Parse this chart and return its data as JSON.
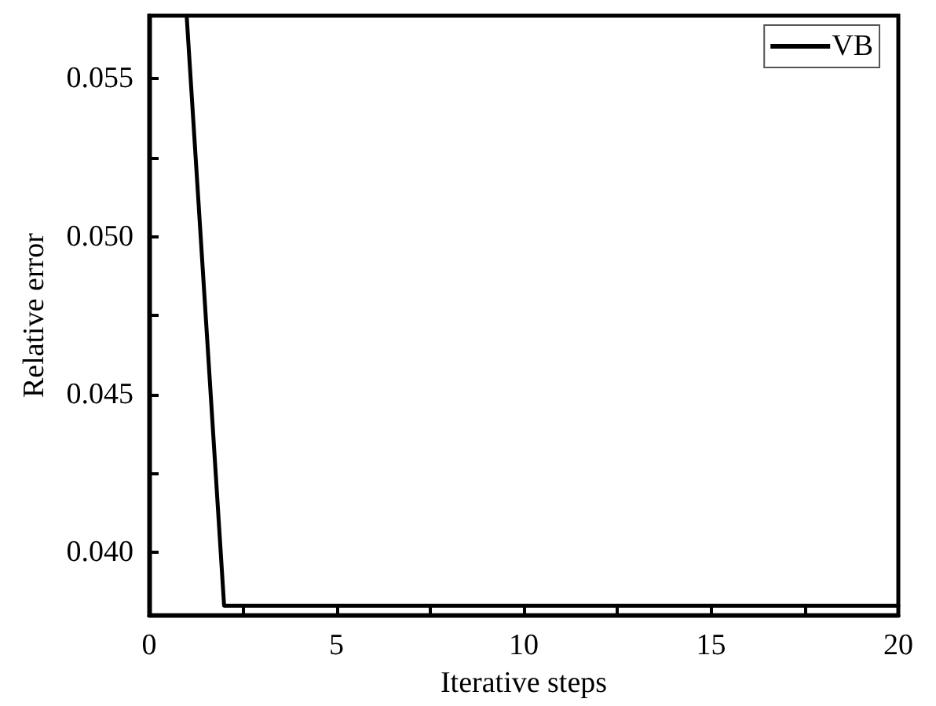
{
  "chart_data": {
    "type": "line",
    "xlabel": "Iterative steps",
    "ylabel": "Relative error",
    "x": [
      1,
      2,
      3,
      4,
      5,
      6,
      7,
      8,
      9,
      10,
      11,
      12,
      13,
      14,
      15,
      16,
      17,
      18,
      19,
      20
    ],
    "series": [
      {
        "name": "VB",
        "color": "#000000",
        "values": [
          0.057,
          0.0383,
          0.0383,
          0.0383,
          0.0383,
          0.0383,
          0.0383,
          0.0383,
          0.0383,
          0.0383,
          0.0383,
          0.0383,
          0.0383,
          0.0383,
          0.0383,
          0.0383,
          0.0383,
          0.0383,
          0.0383,
          0.0383
        ]
      }
    ],
    "xlim": [
      0,
      20
    ],
    "xticks": [
      0,
      {
        "value": 2.5,
        "label": null
      },
      5,
      {
        "value": 7.5,
        "label": null
      },
      10,
      {
        "value": 12.5,
        "label": null
      },
      15,
      {
        "value": 17.5,
        "label": null
      },
      20
    ],
    "ylim": [
      0.038,
      0.057
    ],
    "yticks": [
      {
        "value": 0.04,
        "label": "0.040"
      },
      {
        "value": 0.0425,
        "label": null
      },
      0.045,
      {
        "value": 0.0475,
        "label": null
      },
      {
        "value": 0.05,
        "label": "0.050"
      },
      {
        "value": 0.0525,
        "label": null
      },
      0.055
    ],
    "grid": false,
    "legend": "top right",
    "marker": "none",
    "line_style": "solid"
  }
}
